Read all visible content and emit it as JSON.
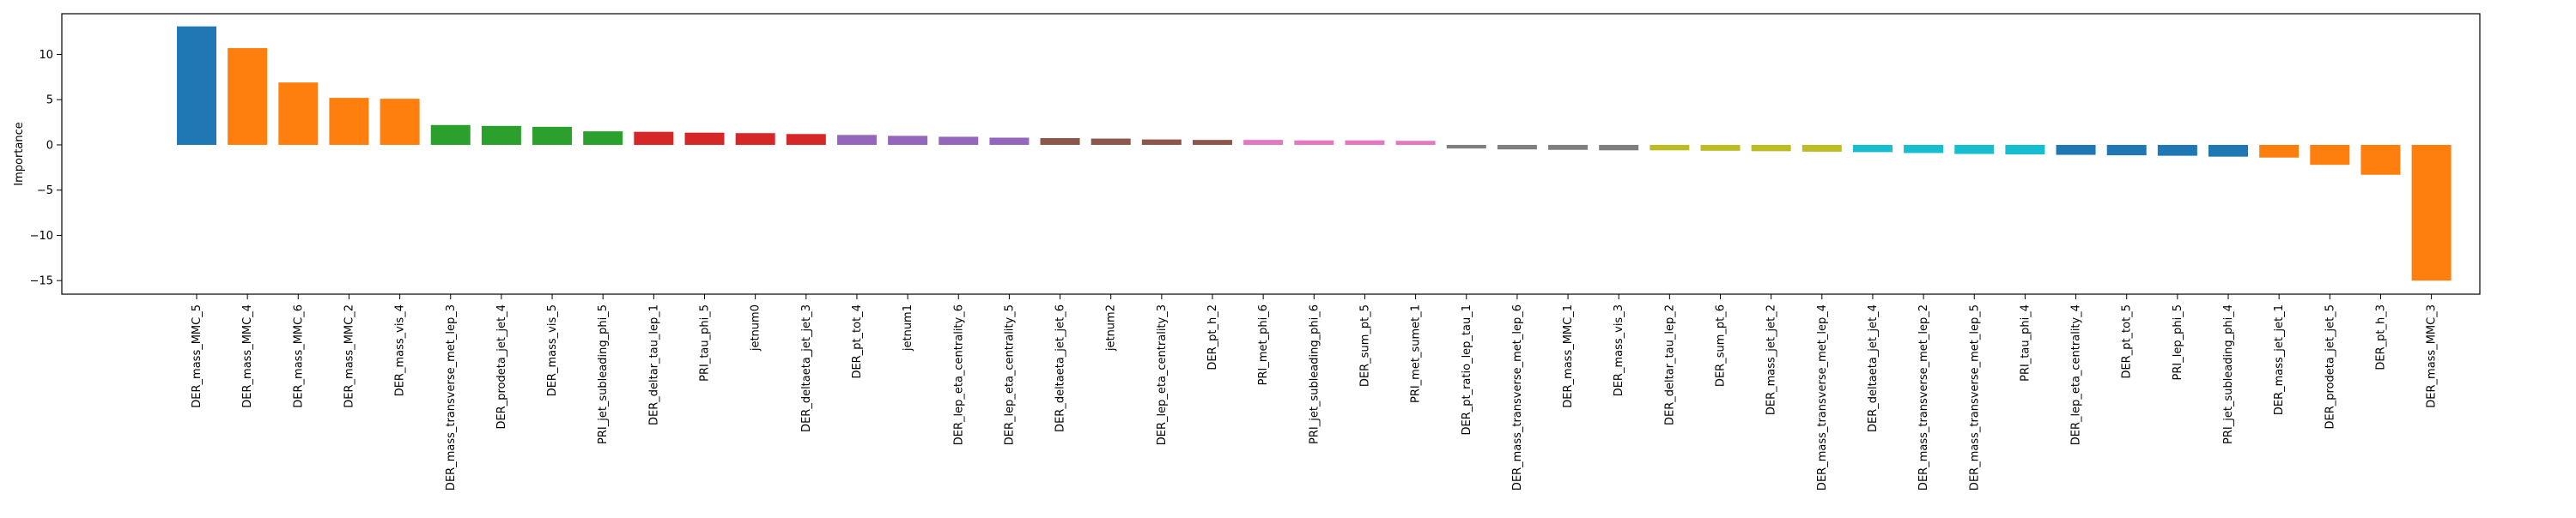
{
  "chart_data": {
    "type": "bar",
    "title": "",
    "xlabel": "",
    "ylabel": "Importance",
    "ylim": [
      -16.5,
      14.5
    ],
    "yticks": [
      -15,
      -10,
      -5,
      0,
      5,
      10
    ],
    "grid": false,
    "legend": "none",
    "categories": [
      "DER_mass_MMC_5",
      "DER_mass_MMC_4",
      "DER_mass_MMC_6",
      "DER_mass_MMC_2",
      "DER_mass_vis_4",
      "DER_mass_transverse_met_lep_3",
      "DER_prodeta_jet_jet_4",
      "DER_mass_vis_5",
      "PRI_jet_subleading_phi_5",
      "DER_deltar_tau_lep_1",
      "PRI_tau_phi_5",
      "jetnum0",
      "DER_deltaeta_jet_jet_3",
      "DER_pt_tot_4",
      "jetnum1",
      "DER_lep_eta_centrality_6",
      "DER_lep_eta_centrality_5",
      "DER_deltaeta_jet_jet_6",
      "jetnum2",
      "DER_lep_eta_centrality_3",
      "DER_pt_h_2",
      "PRI_met_phi_6",
      "PRI_jet_subleading_phi_6",
      "DER_sum_pt_5",
      "PRI_met_sumet_1",
      "DER_pt_ratio_lep_tau_1",
      "DER_mass_transverse_met_lep_6",
      "DER_mass_MMC_1",
      "DER_mass_vis_3",
      "DER_deltar_tau_lep_2",
      "DER_sum_pt_6",
      "DER_mass_jet_jet_2",
      "DER_mass_transverse_met_lep_4",
      "DER_deltaeta_jet_jet_4",
      "DER_mass_transverse_met_lep_2",
      "DER_mass_transverse_met_lep_5",
      "PRI_tau_phi_4",
      "DER_lep_eta_centrality_4",
      "DER_pt_tot_5",
      "PRI_lep_phi_5",
      "PRI_jet_subleading_phi_4",
      "DER_mass_jet_jet_1",
      "DER_prodeta_jet_jet_5",
      "DER_pt_h_3",
      "DER_mass_MMC_3"
    ],
    "values": [
      13.1,
      10.7,
      6.9,
      5.2,
      5.1,
      2.2,
      2.1,
      2.0,
      1.5,
      1.45,
      1.35,
      1.3,
      1.2,
      1.1,
      1.0,
      0.9,
      0.8,
      0.75,
      0.7,
      0.6,
      0.55,
      0.55,
      0.5,
      0.5,
      0.45,
      -0.4,
      -0.5,
      -0.55,
      -0.6,
      -0.6,
      -0.65,
      -0.7,
      -0.75,
      -0.8,
      -0.9,
      -1.0,
      -1.05,
      -1.1,
      -1.15,
      -1.2,
      -1.3,
      -1.4,
      -2.2,
      -3.3,
      -15.0
    ],
    "colors": [
      "#1f77b4",
      "#ff7f0e",
      "#ff7f0e",
      "#ff7f0e",
      "#ff7f0e",
      "#2ca02c",
      "#2ca02c",
      "#2ca02c",
      "#2ca02c",
      "#d62728",
      "#d62728",
      "#d62728",
      "#d62728",
      "#9467bd",
      "#9467bd",
      "#9467bd",
      "#9467bd",
      "#8c564b",
      "#8c564b",
      "#8c564b",
      "#8c564b",
      "#e377c2",
      "#e377c2",
      "#e377c2",
      "#e377c2",
      "#7f7f7f",
      "#7f7f7f",
      "#7f7f7f",
      "#7f7f7f",
      "#bcbd22",
      "#bcbd22",
      "#bcbd22",
      "#bcbd22",
      "#17becf",
      "#17becf",
      "#17becf",
      "#17becf",
      "#1f77b4",
      "#1f77b4",
      "#1f77b4",
      "#1f77b4",
      "#ff7f0e",
      "#ff7f0e",
      "#ff7f0e",
      "#ff7f0e"
    ]
  }
}
